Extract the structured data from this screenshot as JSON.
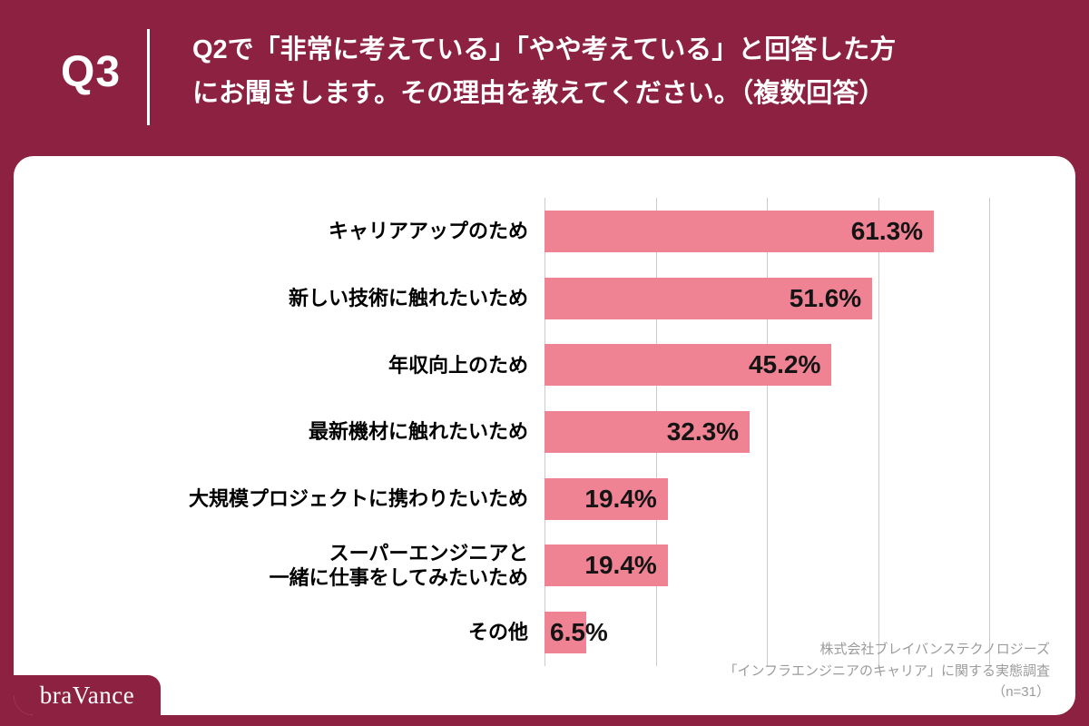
{
  "header": {
    "question_no": "Q3",
    "title_line1": "Q2で「非常に考えている」「やや考えている」と回答した方",
    "title_line2": "にお聞きします。その理由を教えてください。（複数回答）"
  },
  "chart_data": {
    "type": "bar",
    "orientation": "horizontal",
    "categories": [
      "キャリアアップのため",
      "新しい技術に触れたいため",
      "年収向上のため",
      "最新機材に触れたいため",
      "大規模プロジェクトに携わりたいため",
      "スーパーエンジニアと\n一緒に仕事をしてみたいため",
      "その他"
    ],
    "values": [
      61.3,
      51.6,
      45.2,
      32.3,
      19.4,
      19.4,
      6.5
    ],
    "value_labels": [
      "61.3%",
      "51.6%",
      "45.2%",
      "32.3%",
      "19.4%",
      "19.4%",
      "6.5%"
    ],
    "title": "",
    "xlabel": "",
    "ylabel": "",
    "xlim": [
      0,
      70
    ],
    "gridline_interval": 17.5,
    "grid": true,
    "legend": false,
    "bar_color": "#EF8394"
  },
  "source": {
    "line1": "株式会社ブレイバンステクノロジーズ",
    "line2": "「インフラエンジニアのキャリア」に関する実態調査",
    "line3": "（n=31）"
  },
  "logo": {
    "text": "braVance"
  },
  "colors": {
    "background": "#8D2142",
    "card": "#FFFFFF",
    "bar": "#EF8394",
    "gridline": "#CBCBCB",
    "value_text": "#141414",
    "source_text": "#9B9B9B"
  }
}
